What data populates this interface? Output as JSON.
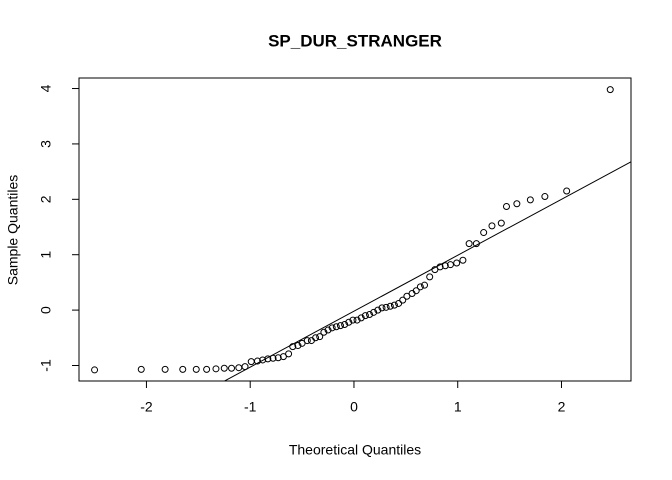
{
  "chart_data": {
    "type": "scatter",
    "title": "SP_DUR_STRANGER",
    "x_label": "Theoretical Quantiles",
    "y_label": "Sample Quantiles",
    "xlim": [
      -2.65,
      2.67
    ],
    "ylim": [
      -1.28,
      4.19
    ],
    "xticks": [
      -2,
      -1,
      0,
      1,
      2
    ],
    "yticks": [
      -1,
      0,
      1,
      2,
      3,
      4
    ],
    "color": "#000000",
    "reference_line": {
      "intercept": -0.02,
      "slope": 1.01
    },
    "x": [
      -2.5,
      -2.05,
      -1.82,
      -1.65,
      -1.52,
      -1.42,
      -1.33,
      -1.25,
      -1.18,
      -1.11,
      -1.05,
      -0.99,
      -0.93,
      -0.88,
      -0.83,
      -0.78,
      -0.73,
      -0.68,
      -0.63,
      -0.59,
      -0.54,
      -0.5,
      -0.45,
      -0.41,
      -0.37,
      -0.33,
      -0.29,
      -0.25,
      -0.21,
      -0.17,
      -0.13,
      -0.09,
      -0.05,
      -0.01,
      0.03,
      0.07,
      0.11,
      0.15,
      0.19,
      0.23,
      0.27,
      0.31,
      0.35,
      0.39,
      0.43,
      0.47,
      0.51,
      0.56,
      0.6,
      0.64,
      0.68,
      0.73,
      0.78,
      0.83,
      0.88,
      0.93,
      0.99,
      1.05,
      1.11,
      1.18,
      1.25,
      1.33,
      1.42,
      1.47,
      1.57,
      1.7,
      1.84,
      2.05,
      2.47
    ],
    "values": [
      -1.08,
      -1.07,
      -1.07,
      -1.07,
      -1.07,
      -1.07,
      -1.06,
      -1.05,
      -1.05,
      -1.04,
      -1.02,
      -0.93,
      -0.92,
      -0.9,
      -0.88,
      -0.87,
      -0.86,
      -0.84,
      -0.79,
      -0.66,
      -0.64,
      -0.6,
      -0.55,
      -0.55,
      -0.5,
      -0.48,
      -0.4,
      -0.36,
      -0.32,
      -0.3,
      -0.28,
      -0.26,
      -0.22,
      -0.18,
      -0.18,
      -0.14,
      -0.1,
      -0.08,
      -0.04,
      0,
      0.04,
      0.05,
      0.07,
      0.09,
      0.12,
      0.18,
      0.25,
      0.3,
      0.35,
      0.42,
      0.45,
      0.6,
      0.73,
      0.78,
      0.8,
      0.82,
      0.85,
      0.9,
      1.2,
      1.2,
      1.4,
      1.52,
      1.57,
      1.87,
      1.92,
      1.99,
      2.05,
      2.15,
      3.98
    ]
  }
}
